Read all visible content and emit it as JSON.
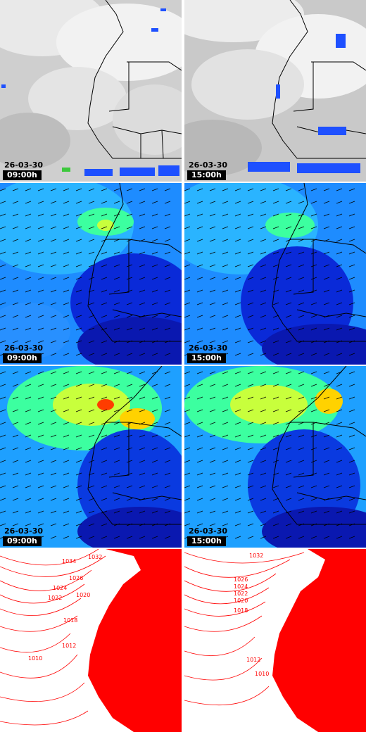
{
  "rows": [
    {
      "kind": "satellite-cloud-imagery",
      "panels": [
        {
          "date": "26-03-30",
          "time": "09:00h"
        },
        {
          "date": "26-03-30",
          "time": "15:00h"
        }
      ]
    },
    {
      "kind": "wind-speed-field",
      "panels": [
        {
          "date": "26-03-30",
          "time": "09:00h"
        },
        {
          "date": "26-03-30",
          "time": "15:00h"
        }
      ]
    },
    {
      "kind": "wind-speed-field-upper",
      "panels": [
        {
          "date": "26-03-30",
          "time": "09:00h"
        },
        {
          "date": "26-03-30",
          "time": "15:00h"
        }
      ]
    },
    {
      "kind": "surface-pressure-isobars",
      "panels": [
        {
          "isobars": [
            "1034",
            "1032",
            "1026",
            "1024",
            "1022",
            "1020",
            "1018",
            "1012",
            "1010"
          ]
        },
        {
          "isobars": [
            "1032",
            "1026",
            "1024",
            "1022",
            "1020",
            "1018",
            "1012",
            "1010"
          ]
        }
      ]
    }
  ],
  "colors": {
    "cloud_gray": "#d8d8d8",
    "cloud_white": "#f4f4f4",
    "precip_blue": "#1e50ff",
    "precip_green": "#3cc83c",
    "wind_low": "#0a20c8",
    "wind_mid": "#1ea0ff",
    "wind_high": "#3cffa0",
    "wind_max": "#ffd200",
    "wind_peak": "#ff3c00",
    "isobar_red": "#ff0000",
    "border_black": "#000000"
  }
}
